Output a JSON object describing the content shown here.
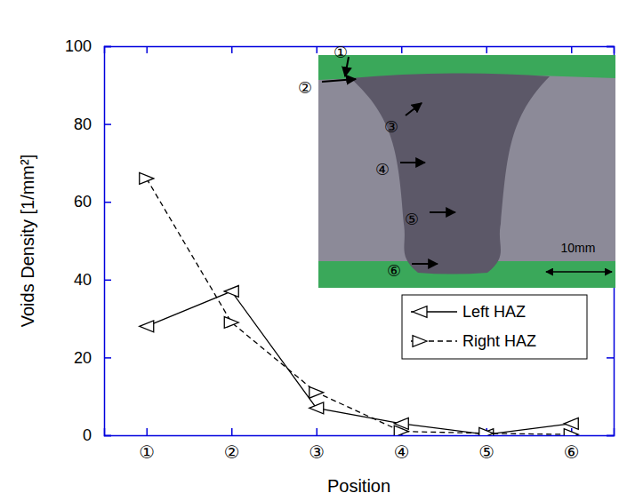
{
  "chart_data": {
    "type": "line",
    "x_label": "Position",
    "y_label": "Voids Density [1/mm²]",
    "categories": [
      "①",
      "②",
      "③",
      "④",
      "⑤",
      "⑥"
    ],
    "series": [
      {
        "name": "Left HAZ",
        "color": "#000000",
        "line_style": "solid",
        "marker": "triangle-left",
        "values": [
          28,
          37,
          7,
          3,
          0.2,
          3
        ]
      },
      {
        "name": "Right HAZ",
        "color": "#000000",
        "line_style": "dashed",
        "marker": "triangle-right",
        "values": [
          66,
          29,
          11,
          1,
          0.5,
          0.2
        ]
      }
    ],
    "ylim": [
      0,
      100
    ],
    "yticks": [
      0,
      20,
      40,
      60,
      80,
      100
    ],
    "grid": false,
    "legend": "right",
    "annotations": [
      "①",
      "②",
      "③",
      "④",
      "⑤",
      "⑥",
      "10mm"
    ]
  }
}
